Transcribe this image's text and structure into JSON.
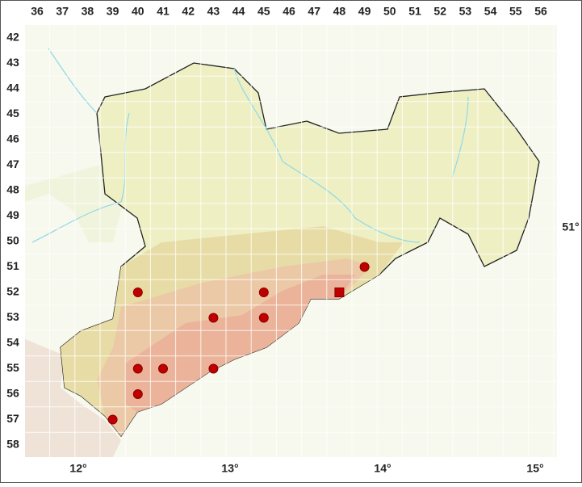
{
  "columns": [
    36,
    37,
    38,
    39,
    40,
    41,
    42,
    43,
    44,
    45,
    46,
    47,
    48,
    49,
    50,
    51,
    52,
    53,
    54,
    55,
    56
  ],
  "rows": [
    42,
    43,
    44,
    45,
    46,
    47,
    48,
    49,
    50,
    51,
    52,
    53,
    54,
    55,
    56,
    57,
    58
  ],
  "longitude_labels": [
    "12°",
    "13°",
    "14°",
    "15°"
  ],
  "latitude_labels": [
    "51°"
  ],
  "records": [
    {
      "col": 49,
      "row": 51,
      "symbol": "circle"
    },
    {
      "col": 40,
      "row": 52,
      "symbol": "circle"
    },
    {
      "col": 45,
      "row": 52,
      "symbol": "circle"
    },
    {
      "col": 48,
      "row": 52,
      "symbol": "square"
    },
    {
      "col": 43,
      "row": 53,
      "symbol": "circle"
    },
    {
      "col": 45,
      "row": 53,
      "symbol": "circle"
    },
    {
      "col": 40,
      "row": 55,
      "symbol": "circle"
    },
    {
      "col": 41,
      "row": 55,
      "symbol": "circle"
    },
    {
      "col": 43,
      "row": 55,
      "symbol": "circle"
    },
    {
      "col": 40,
      "row": 56,
      "symbol": "circle"
    },
    {
      "col": 39,
      "row": 57,
      "symbol": "circle"
    }
  ]
}
